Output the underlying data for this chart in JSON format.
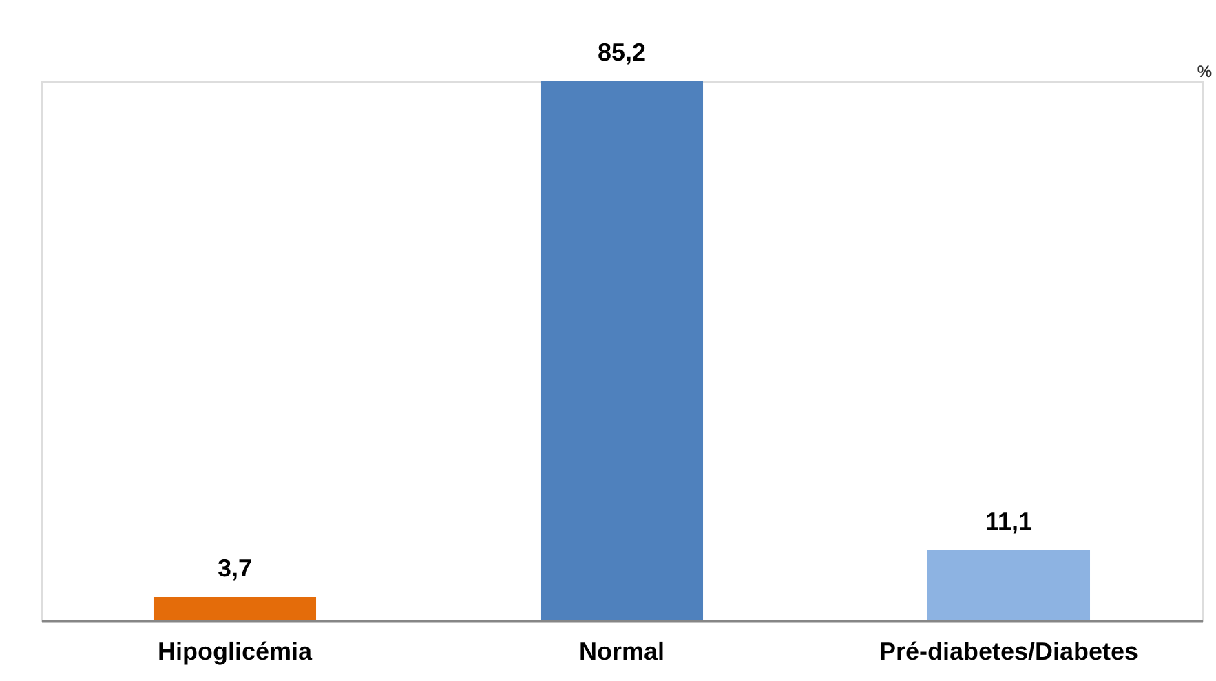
{
  "chart_data": {
    "type": "bar",
    "categories": [
      "Hipoglicémia",
      "Normal",
      "Pré-diabetes/Diabetes"
    ],
    "values": [
      3.7,
      85.2,
      11.1
    ],
    "colors": [
      "#e46c0a",
      "#4f81bd",
      "#8db3e2"
    ],
    "value_labels": [
      "3,7",
      "85,2",
      "11,1"
    ],
    "ylabel": "%",
    "grid": false
  }
}
